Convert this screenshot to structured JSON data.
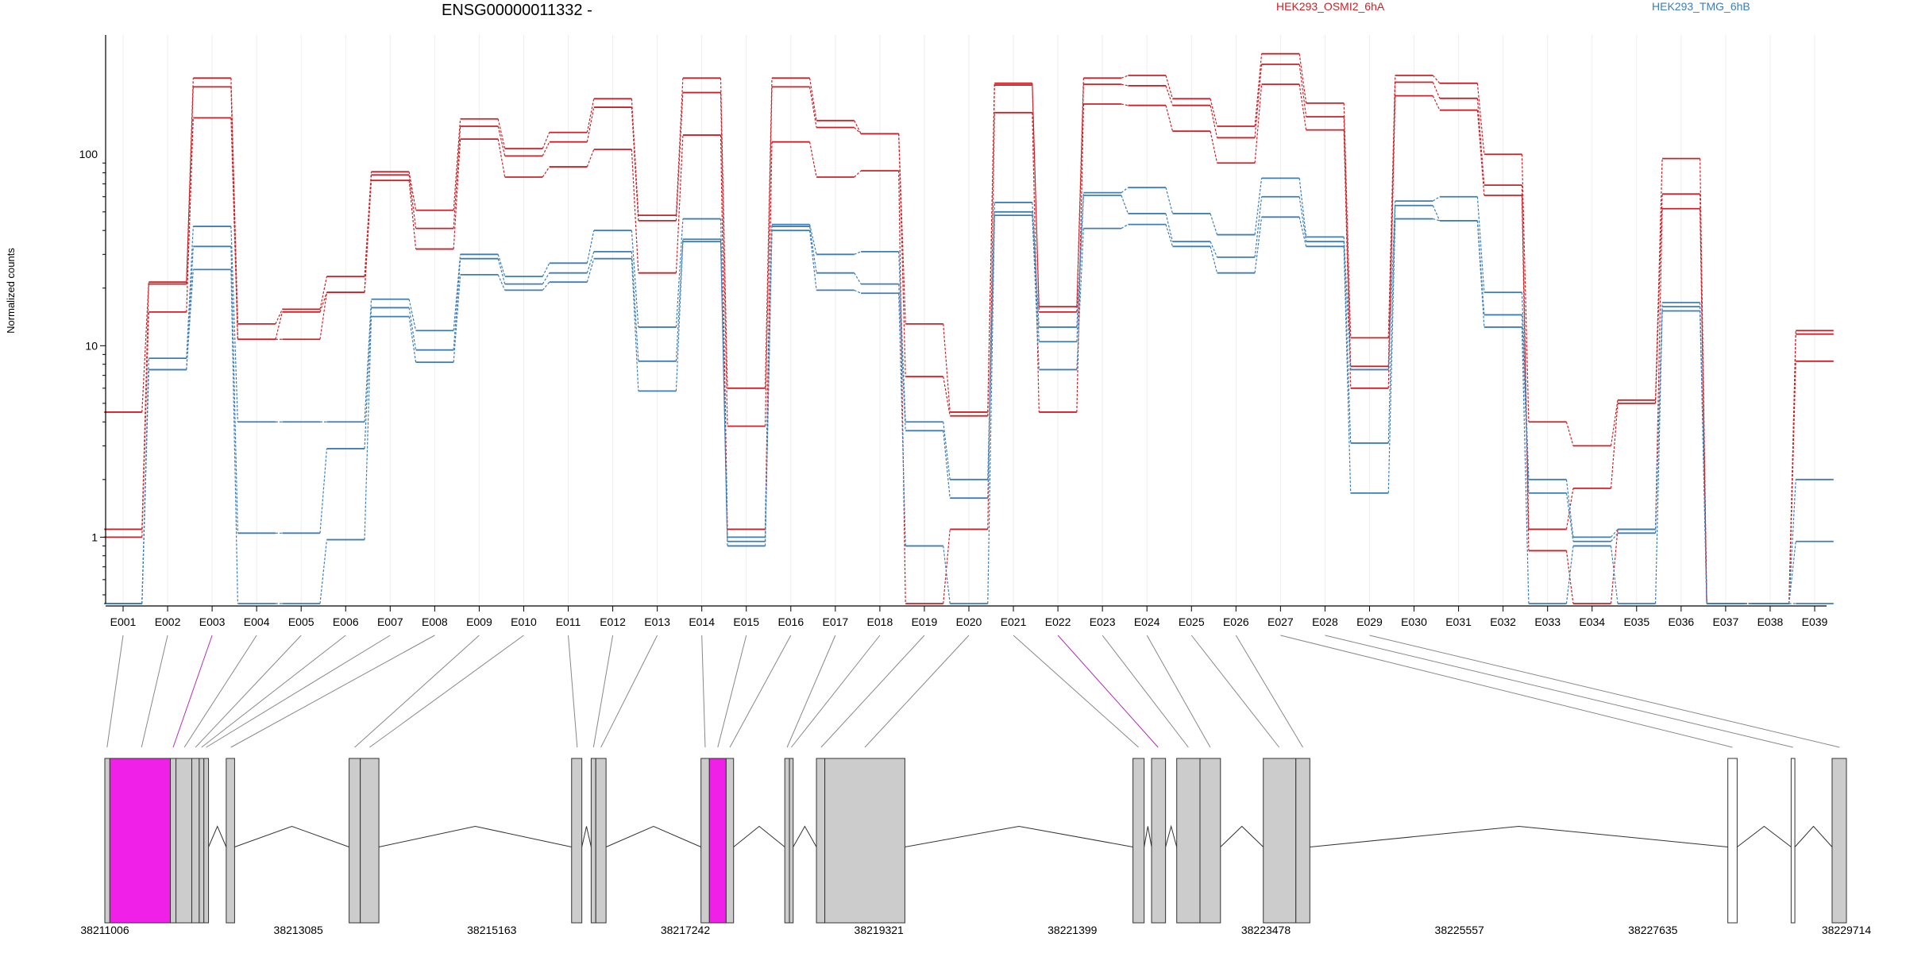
{
  "chart_data": {
    "type": "line",
    "title": "ENSG00000011332 -",
    "ylabel": "Normalized counts",
    "yscale": "log",
    "ylim": [
      0.45,
      420
    ],
    "yticks": [
      {
        "value": 1,
        "label": "1"
      },
      {
        "value": 10,
        "label": "10"
      },
      {
        "value": 100,
        "label": "100"
      }
    ],
    "legend": [
      {
        "name": "HEK293_OSMI2_6hA",
        "color": "#cd2027"
      },
      {
        "name": "HEK293_TMG_6hB",
        "color": "#3d7eb9"
      }
    ],
    "categories": [
      "E001",
      "E002",
      "E003",
      "E004",
      "E005",
      "E006",
      "E007",
      "E008",
      "E009",
      "E010",
      "E011",
      "E012",
      "E013",
      "E014",
      "E015",
      "E016",
      "E017",
      "E018",
      "E019",
      "E020",
      "E021",
      "E022",
      "E023",
      "E024",
      "E025",
      "E026",
      "E027",
      "E028",
      "E029",
      "E030",
      "E031",
      "E032",
      "E033",
      "E034",
      "E035",
      "E036",
      "E037",
      "E038",
      "E039"
    ],
    "series": [
      {
        "group": 0,
        "values": [
          4.5,
          21.5,
          250,
          13,
          15.5,
          23,
          81,
          51,
          153,
          107,
          130,
          195,
          48,
          250,
          6,
          250,
          150,
          128,
          13,
          4.5,
          235,
          16,
          250,
          258,
          195,
          140,
          335,
          185,
          11,
          258,
          235,
          100,
          4,
          3,
          5.2,
          95,
          0.45,
          0.45,
          12
        ]
      },
      {
        "group": 0,
        "values": [
          1.1,
          21,
          225,
          10.8,
          15,
          19,
          78,
          41,
          140,
          98,
          116,
          176,
          45,
          210,
          3.8,
          225,
          138,
          128,
          6.9,
          4.3,
          230,
          15,
          232,
          228,
          180,
          122,
          295,
          157,
          7.8,
          238,
          196,
          69,
          1.1,
          1.8,
          5,
          62,
          0.45,
          0.45,
          11.5
        ]
      },
      {
        "group": 0,
        "values": [
          1.0,
          15,
          155,
          10.8,
          10.8,
          19,
          73,
          32,
          120,
          76,
          86,
          106,
          24,
          126,
          1.1,
          116,
          76,
          82,
          0.45,
          1.1,
          165,
          4.5,
          183,
          180,
          132,
          90,
          232,
          134,
          6,
          202,
          170,
          61,
          0.85,
          0.45,
          1.1,
          52,
          0.45,
          0.45,
          8.3
        ]
      },
      {
        "group": 1,
        "values": [
          0.45,
          8.6,
          42,
          4,
          4,
          4,
          17.5,
          12,
          30,
          23,
          27,
          40,
          12.5,
          46,
          1.0,
          43,
          30,
          31,
          4,
          2,
          56,
          12.5,
          63,
          67,
          49,
          38,
          75,
          37,
          7.5,
          57,
          60,
          19,
          2,
          1,
          1.1,
          16.8,
          0.45,
          0.45,
          2
        ]
      },
      {
        "group": 1,
        "values": [
          0.45,
          7.5,
          33,
          1.05,
          1.05,
          2.9,
          15.8,
          9.5,
          28.5,
          21,
          24,
          31,
          8.3,
          36,
          0.95,
          42,
          24,
          21,
          3.6,
          1.6,
          50,
          10.5,
          61,
          49,
          35,
          29,
          60,
          35,
          3.1,
          54,
          45,
          14.5,
          1.7,
          0.95,
          1.05,
          16,
          0.45,
          0.45,
          0.95
        ]
      },
      {
        "group": 1,
        "values": [
          0.45,
          7.5,
          25,
          0.45,
          0.45,
          0.97,
          14.2,
          8.2,
          23.5,
          19.5,
          21.5,
          28.5,
          5.8,
          35,
          0.9,
          40,
          19.5,
          18.8,
          0.9,
          0.45,
          48,
          7.5,
          41,
          43,
          33,
          24,
          47,
          33,
          1.7,
          46,
          45,
          12.5,
          0.45,
          0.9,
          0.45,
          15.2,
          0.45,
          0.45,
          0.45
        ]
      }
    ],
    "gene_model": {
      "start": 38211006,
      "end": 38229714,
      "coordinate_ticks": [
        {
          "value": 38211006,
          "label": "38211006"
        },
        {
          "value": 38213085,
          "label": "38213085"
        },
        {
          "value": 38215163,
          "label": "38215163"
        },
        {
          "value": 38217242,
          "label": "38217242"
        },
        {
          "value": 38219321,
          "label": "38219321"
        },
        {
          "value": 38221399,
          "label": "38221399"
        },
        {
          "value": 38223478,
          "label": "38223478"
        },
        {
          "value": 38225557,
          "label": "38225557"
        },
        {
          "value": 38227635,
          "label": "38227635"
        },
        {
          "value": 38229714,
          "label": "38229714"
        }
      ],
      "blocks": [
        {
          "start": 38211006,
          "end": 38211060,
          "color": "#cccccc"
        },
        {
          "start": 38211060,
          "end": 38211710,
          "color": "#f020e8"
        },
        {
          "start": 38211710,
          "end": 38211770,
          "color": "#cccccc"
        },
        {
          "start": 38211770,
          "end": 38211940,
          "color": "#cccccc"
        },
        {
          "start": 38211940,
          "end": 38212020,
          "color": "#cccccc"
        },
        {
          "start": 38212020,
          "end": 38212070,
          "color": "#cccccc"
        },
        {
          "start": 38212070,
          "end": 38212120,
          "color": "#cccccc"
        },
        {
          "start": 38212310,
          "end": 38212400,
          "color": "#cccccc"
        },
        {
          "start": 38213630,
          "end": 38213750,
          "color": "#cccccc"
        },
        {
          "start": 38213750,
          "end": 38213950,
          "color": "#cccccc"
        },
        {
          "start": 38216020,
          "end": 38216130,
          "color": "#cccccc"
        },
        {
          "start": 38216230,
          "end": 38216280,
          "color": "#cccccc"
        },
        {
          "start": 38216280,
          "end": 38216390,
          "color": "#cccccc"
        },
        {
          "start": 38217410,
          "end": 38217500,
          "color": "#cccccc"
        },
        {
          "start": 38217500,
          "end": 38217680,
          "color": "#f020e8"
        },
        {
          "start": 38217680,
          "end": 38217760,
          "color": "#cccccc"
        },
        {
          "start": 38218310,
          "end": 38218360,
          "color": "#cccccc"
        },
        {
          "start": 38218360,
          "end": 38218400,
          "color": "#cccccc"
        },
        {
          "start": 38218650,
          "end": 38218740,
          "color": "#cccccc"
        },
        {
          "start": 38218740,
          "end": 38219600,
          "color": "#cccccc"
        },
        {
          "start": 38222050,
          "end": 38222170,
          "color": "#cccccc"
        },
        {
          "start": 38222250,
          "end": 38222400,
          "color": "#cccccc"
        },
        {
          "start": 38222520,
          "end": 38222770,
          "color": "#cccccc"
        },
        {
          "start": 38222770,
          "end": 38222990,
          "color": "#cccccc"
        },
        {
          "start": 38223450,
          "end": 38223800,
          "color": "#cccccc"
        },
        {
          "start": 38223800,
          "end": 38223950,
          "color": "#cccccc"
        },
        {
          "start": 38228440,
          "end": 38228540,
          "color": "#ffffff"
        },
        {
          "start": 38229120,
          "end": 38229160,
          "color": "#ffffff"
        },
        {
          "start": 38229560,
          "end": 38229714,
          "color": "#cccccc"
        }
      ],
      "exon_links": [
        38211030,
        38211400,
        38211740,
        38211860,
        38211980,
        38212045,
        38212095,
        38212360,
        38213690,
        38213850,
        38216080,
        38216255,
        38216335,
        38217455,
        38217590,
        38217720,
        38218335,
        38218380,
        38218700,
        38219170,
        38222110,
        38222320,
        38222645,
        38222880,
        38223620,
        38223875,
        38228490,
        38229140,
        38229640
      ],
      "highlight_links": [
        2,
        21
      ],
      "introns": [
        [
          38212120,
          38212310
        ],
        [
          38212400,
          38213630
        ],
        [
          38213950,
          38216020
        ],
        [
          38216130,
          38216230
        ],
        [
          38216390,
          38217410
        ],
        [
          38217760,
          38218310
        ],
        [
          38218400,
          38218650
        ],
        [
          38219600,
          38222050
        ],
        [
          38222170,
          38222250
        ],
        [
          38222400,
          38222520
        ],
        [
          38222990,
          38223450
        ],
        [
          38223950,
          38228440
        ],
        [
          38228540,
          38229120
        ],
        [
          38229160,
          38229560
        ]
      ]
    }
  }
}
